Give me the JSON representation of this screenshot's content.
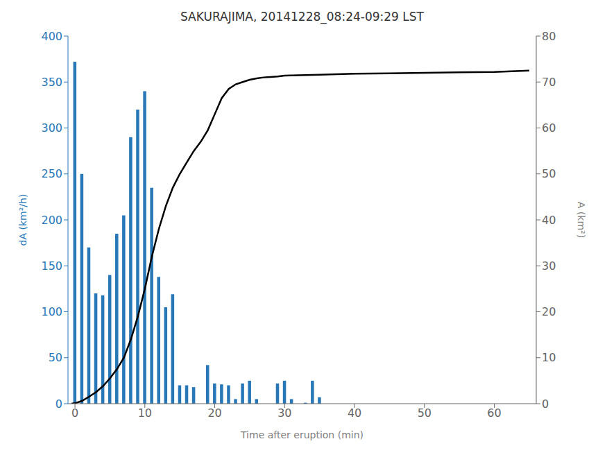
{
  "chart_data": {
    "type": "bar",
    "title": "SAKURAJIMA, 20141228_08:24-09:29 LST",
    "x_label": "Time after eruption (min)",
    "y_label": "dA (km²/h)",
    "y2_label": "A (km²)",
    "xlim": [
      -1,
      66
    ],
    "xticks": [
      0,
      10,
      20,
      30,
      40,
      50,
      60
    ],
    "ylim": [
      0,
      400
    ],
    "yticks": [
      0,
      50,
      100,
      150,
      200,
      250,
      300,
      350,
      400
    ],
    "y2lim": [
      0,
      80
    ],
    "y2ticks": [
      0,
      10,
      20,
      30,
      40,
      50,
      60,
      70,
      80
    ],
    "grid": false,
    "series": [
      {
        "type": "bar",
        "color": "#2878b8",
        "x": [
          0,
          1,
          2,
          3,
          4,
          5,
          6,
          7,
          8,
          9,
          10,
          11,
          12,
          13,
          14,
          15,
          16,
          17,
          18,
          19,
          20,
          21,
          22,
          23,
          24,
          25,
          26,
          27,
          28,
          29,
          30,
          31,
          32,
          33,
          34,
          35,
          36,
          37,
          38,
          39,
          40,
          41,
          42,
          43,
          44,
          45,
          46,
          47,
          48,
          49,
          50,
          51,
          52,
          53,
          54,
          55,
          56,
          57,
          58,
          59,
          60,
          61,
          62,
          63,
          64,
          65
        ],
        "values": [
          372,
          250,
          170,
          120,
          118,
          140,
          185,
          205,
          290,
          320,
          340,
          235,
          138,
          105,
          119,
          20,
          20,
          18,
          0,
          42,
          22,
          21,
          20,
          5,
          22,
          25,
          5,
          0,
          0,
          22,
          25,
          5,
          0,
          1,
          25,
          7,
          0,
          0,
          0,
          0,
          0,
          0,
          0,
          0,
          0,
          0,
          0,
          0,
          0,
          0,
          0,
          0,
          0,
          0,
          0,
          0,
          0,
          0,
          0,
          0,
          0,
          0,
          0,
          0,
          0,
          0
        ]
      },
      {
        "type": "line",
        "color": "#000000",
        "axis": "y2",
        "x": [
          -0.5,
          0,
          1,
          2,
          3,
          4,
          5,
          6,
          7,
          8,
          9,
          10,
          11,
          12,
          13,
          14,
          15,
          16,
          17,
          18,
          19,
          20,
          21,
          22,
          23,
          24,
          25,
          26,
          27,
          28,
          29,
          30,
          35,
          40,
          45,
          50,
          55,
          60,
          65
        ],
        "values": [
          0,
          0.1,
          0.6,
          1.5,
          2.5,
          3.8,
          5.5,
          7.5,
          10,
          14,
          19,
          25,
          32,
          38,
          43,
          47,
          50,
          52.5,
          55,
          57,
          59.5,
          63,
          66.5,
          68.5,
          69.5,
          70,
          70.5,
          70.8,
          71,
          71.1,
          71.2,
          71.4,
          71.6,
          71.8,
          71.9,
          72.0,
          72.1,
          72.2,
          72.5
        ]
      }
    ]
  }
}
